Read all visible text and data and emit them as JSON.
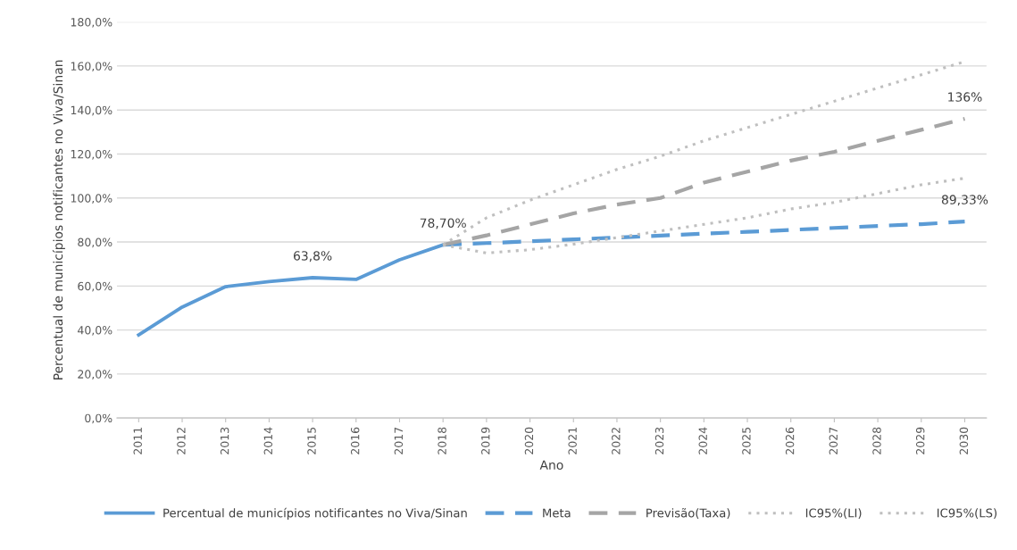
{
  "chart_data": {
    "type": "line",
    "xlabel": "Ano",
    "ylabel": "Percentual de municípios notificantes no Viva/Sinan",
    "categories": [
      "2011",
      "2012",
      "2013",
      "2014",
      "2015",
      "2016",
      "2017",
      "2018",
      "2019",
      "2020",
      "2021",
      "2022",
      "2023",
      "2024",
      "2025",
      "2026",
      "2027",
      "2028",
      "2029",
      "2030"
    ],
    "series": [
      {
        "name": "Percentual de municípios notificantes no Viva/Sinan",
        "color": "#5b9bd5",
        "line_style": "solid",
        "values": [
          37.8,
          50.4,
          59.7,
          62,
          63.8,
          63,
          71.9,
          78.7,
          null,
          null,
          null,
          null,
          null,
          null,
          null,
          null,
          null,
          null,
          null,
          null
        ],
        "value_labels": [
          null,
          null,
          null,
          null,
          "63,8%",
          null,
          null,
          "78,70%",
          null,
          null,
          null,
          null,
          null,
          null,
          null,
          null,
          null,
          null,
          null,
          null
        ]
      },
      {
        "name": "Meta",
        "color": "#5b9bd5",
        "line_style": "dashed",
        "values": [
          null,
          null,
          null,
          null,
          null,
          null,
          null,
          78.7,
          79.5,
          80.3,
          81.2,
          82,
          82.9,
          83.8,
          84.6,
          85.5,
          86.4,
          87.3,
          88.1,
          89.33
        ],
        "value_labels": [
          null,
          null,
          null,
          null,
          null,
          null,
          null,
          null,
          null,
          null,
          null,
          null,
          null,
          null,
          null,
          null,
          null,
          null,
          null,
          "89,33%"
        ]
      },
      {
        "name": "Previsão(Taxa)",
        "color": "#a5a5a5",
        "line_style": "dashed",
        "values": [
          null,
          null,
          null,
          null,
          null,
          null,
          null,
          78.7,
          83,
          88,
          93,
          97,
          100,
          107,
          112,
          117,
          121,
          126,
          131,
          136
        ],
        "value_labels": [
          null,
          null,
          null,
          null,
          null,
          null,
          null,
          null,
          null,
          null,
          null,
          null,
          null,
          null,
          null,
          null,
          null,
          null,
          null,
          "136%"
        ]
      },
      {
        "name": "IC95%(LI)",
        "color": "#bfbfbf",
        "line_style": "dotted",
        "values": [
          null,
          null,
          null,
          null,
          null,
          null,
          null,
          78.7,
          75,
          76.5,
          79,
          82,
          85,
          88,
          91,
          95,
          98,
          102,
          106,
          109
        ]
      },
      {
        "name": "IC95%(LS)",
        "color": "#bfbfbf",
        "line_style": "dotted",
        "values": [
          null,
          null,
          null,
          null,
          null,
          null,
          null,
          78.7,
          91,
          99,
          106,
          113,
          119,
          126,
          132,
          138,
          144,
          150,
          156,
          162
        ]
      }
    ],
    "ylim": [
      0,
      180
    ],
    "yticks": [
      {
        "value": 0,
        "label": "0,0%"
      },
      {
        "value": 20,
        "label": "20,0%"
      },
      {
        "value": 40,
        "label": "40,0%"
      },
      {
        "value": 60,
        "label": "60,0%"
      },
      {
        "value": 80,
        "label": "80,0%"
      },
      {
        "value": 100,
        "label": "100,0%"
      },
      {
        "value": 120,
        "label": "120,0%"
      },
      {
        "value": 140,
        "label": "140,0%"
      },
      {
        "value": 160,
        "label": "160,0%"
      },
      {
        "value": 180,
        "label": "180,0%"
      }
    ],
    "grid": "y",
    "legend": "bottom",
    "marker": "none"
  }
}
